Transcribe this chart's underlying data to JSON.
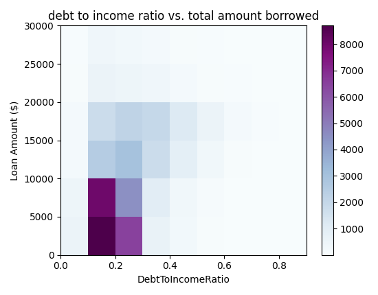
{
  "title": "debt to income ratio vs. total amount borrowed",
  "xlabel": "DebtToIncomeRatio",
  "ylabel": "Loan Amount ($)",
  "x_bins": [
    0.0,
    0.1,
    0.2,
    0.3,
    0.4,
    0.5,
    0.6,
    0.7,
    0.8,
    0.9
  ],
  "y_bins": [
    0,
    5000,
    10000,
    15000,
    20000,
    25000,
    30000
  ],
  "hist2d": [
    [
      600,
      8700,
      6500,
      700,
      300,
      100,
      30,
      10,
      5,
      2
    ],
    [
      500,
      8000,
      4500,
      1000,
      350,
      120,
      25,
      8,
      3,
      1
    ],
    [
      200,
      2500,
      3000,
      1800,
      900,
      350,
      100,
      30,
      10,
      4
    ],
    [
      200,
      1800,
      2200,
      2000,
      1200,
      600,
      180,
      60,
      20,
      5
    ],
    [
      100,
      600,
      500,
      400,
      200,
      100,
      40,
      15,
      5,
      2
    ],
    [
      50,
      400,
      300,
      200,
      100,
      50,
      20,
      8,
      3,
      1
    ]
  ],
  "cmap": "BuPu",
  "vmax": 8700,
  "xlim": [
    0.0,
    0.9
  ],
  "ylim": [
    0,
    30000
  ],
  "xticks": [
    0.0,
    0.2,
    0.4,
    0.6,
    0.8
  ],
  "yticks": [
    0,
    5000,
    10000,
    15000,
    20000,
    25000,
    30000
  ],
  "figsize": [
    5.5,
    4.3
  ],
  "dpi": 100
}
